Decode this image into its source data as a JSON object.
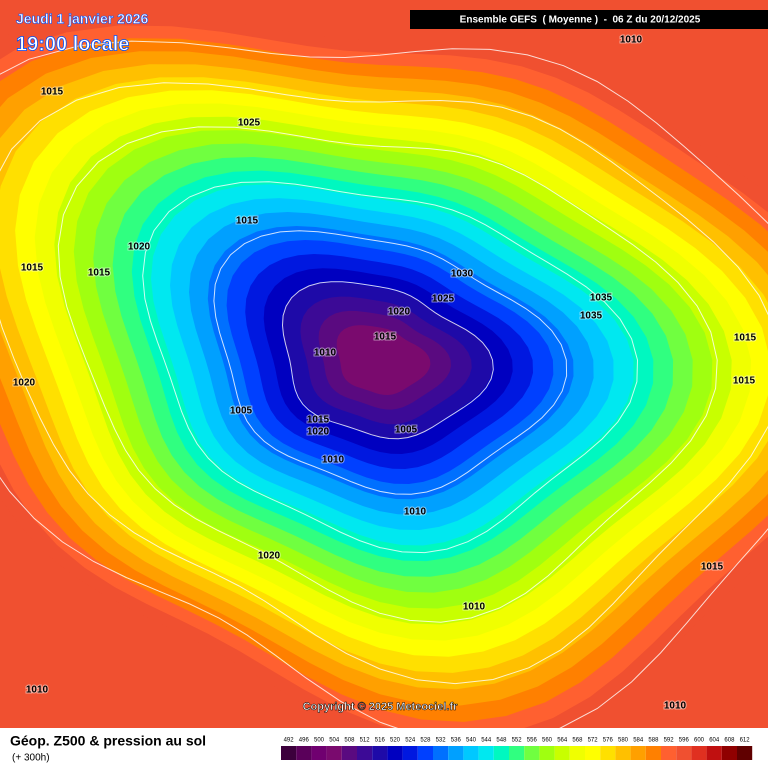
{
  "header": {
    "date": "Jeudi 1 janvier 2026",
    "time": "19:00 locale",
    "run": "Ensemble GEFS  ( Moyenne )  -  06 Z du 20/12/2025"
  },
  "isobars": [
    "1010",
    "1015",
    "1025",
    "1015",
    "1020",
    "1015",
    "1015",
    "1030",
    "1025",
    "1035",
    "1020",
    "1035",
    "1015",
    "1015",
    "1010",
    "1020",
    "1015",
    "1005",
    "1015",
    "1020",
    "1005",
    "1010",
    "1010",
    "1020",
    "1015",
    "1010",
    "1010",
    "1010"
  ],
  "copyright": "Copyright © 2025 Meteociel.fr",
  "legend": {
    "title": "Géop. Z500 & pression au sol",
    "subtitle": "(+ 300h)",
    "ticks": [
      492,
      496,
      500,
      504,
      508,
      512,
      516,
      520,
      524,
      528,
      532,
      536,
      540,
      544,
      548,
      552,
      556,
      560,
      564,
      568,
      572,
      576,
      580,
      584,
      588,
      592,
      596,
      600,
      604,
      608,
      612
    ],
    "colors": [
      "#3c003c",
      "#5a005a",
      "#700070",
      "#7a0a6e",
      "#5a0a80",
      "#3c0a96",
      "#1e0aa8",
      "#0000c0",
      "#0018e0",
      "#0040ff",
      "#0070ff",
      "#00a0ff",
      "#00c8ff",
      "#00e8f0",
      "#00f8c0",
      "#30ff80",
      "#70ff40",
      "#a0ff10",
      "#c8ff00",
      "#f0ff00",
      "#ffff00",
      "#ffe000",
      "#ffc000",
      "#ffa000",
      "#ff8000",
      "#ff6030",
      "#f05030",
      "#e03020",
      "#c01010",
      "#900000",
      "#600000"
    ]
  }
}
